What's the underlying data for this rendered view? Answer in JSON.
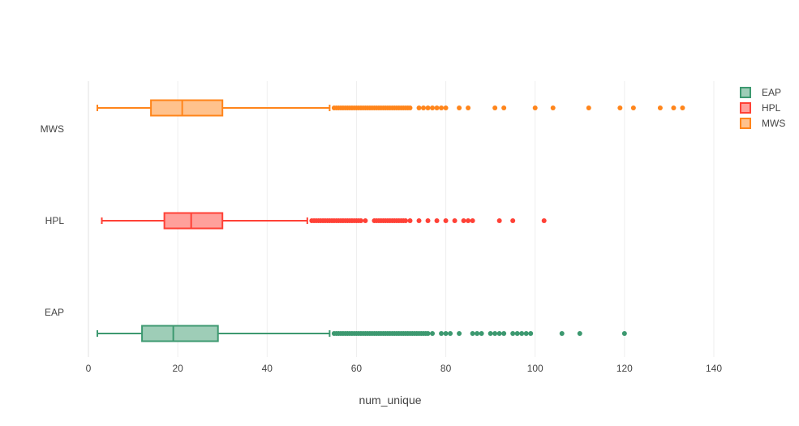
{
  "chart_data": {
    "type": "box",
    "orientation": "horizontal",
    "xlabel": "num_unique",
    "xlim": [
      0,
      140
    ],
    "xticks": [
      0,
      20,
      40,
      60,
      80,
      100,
      120,
      140
    ],
    "grid": true,
    "legend_position": "top-right",
    "categories": [
      "MWS",
      "HPL",
      "EAP"
    ],
    "series": [
      {
        "name": "EAP",
        "color": "#3d9970",
        "fill": "#9ecdb7",
        "min": 2,
        "q1": 12,
        "median": 19,
        "q3": 29,
        "max": 54,
        "outliers": [
          55,
          55.5,
          56,
          56.5,
          57,
          57.5,
          58,
          58.5,
          59,
          59.5,
          60,
          60.5,
          61,
          61.5,
          62,
          62.5,
          63,
          63.5,
          64,
          64.5,
          65,
          65.5,
          66,
          66.5,
          67,
          67.5,
          68,
          68.5,
          69,
          69.5,
          70,
          70.5,
          71,
          71.5,
          72,
          72.5,
          73,
          73.5,
          74,
          74.5,
          75,
          75.5,
          76,
          77,
          79,
          80,
          81,
          83,
          86,
          87,
          88,
          90,
          91,
          92,
          93,
          95,
          96,
          97,
          98,
          99,
          106,
          110,
          120
        ]
      },
      {
        "name": "HPL",
        "color": "#ff4136",
        "fill": "#ffa09b",
        "min": 3,
        "q1": 17,
        "median": 23,
        "q3": 30,
        "max": 49,
        "outliers": [
          50,
          50.5,
          51,
          51.5,
          52,
          52.5,
          53,
          53.5,
          54,
          54.5,
          55,
          55.5,
          56,
          56.5,
          57,
          57.5,
          58,
          58.5,
          59,
          59.5,
          60,
          60.5,
          61,
          62,
          64,
          64.5,
          65,
          65.5,
          66,
          66.5,
          67,
          67.5,
          68,
          68.5,
          69,
          69.5,
          70,
          70.5,
          71,
          72,
          74,
          76,
          78,
          80,
          82,
          84,
          85,
          86,
          92,
          95,
          102
        ]
      },
      {
        "name": "MWS",
        "color": "#ff851b",
        "fill": "#ffc28d",
        "min": 2,
        "q1": 14,
        "median": 21,
        "q3": 30,
        "max": 54,
        "outliers": [
          55,
          55.5,
          56,
          56.5,
          57,
          57.5,
          58,
          58.5,
          59,
          59.5,
          60,
          60.5,
          61,
          61.5,
          62,
          62.5,
          63,
          63.5,
          64,
          64.5,
          65,
          65.5,
          66,
          66.5,
          67,
          67.5,
          68,
          68.5,
          69,
          69.5,
          70,
          70.5,
          71,
          71.5,
          72,
          74,
          75,
          76,
          77,
          78,
          79,
          80,
          83,
          85,
          91,
          93,
          100,
          104,
          112,
          119,
          122,
          128,
          131,
          133
        ]
      }
    ]
  }
}
